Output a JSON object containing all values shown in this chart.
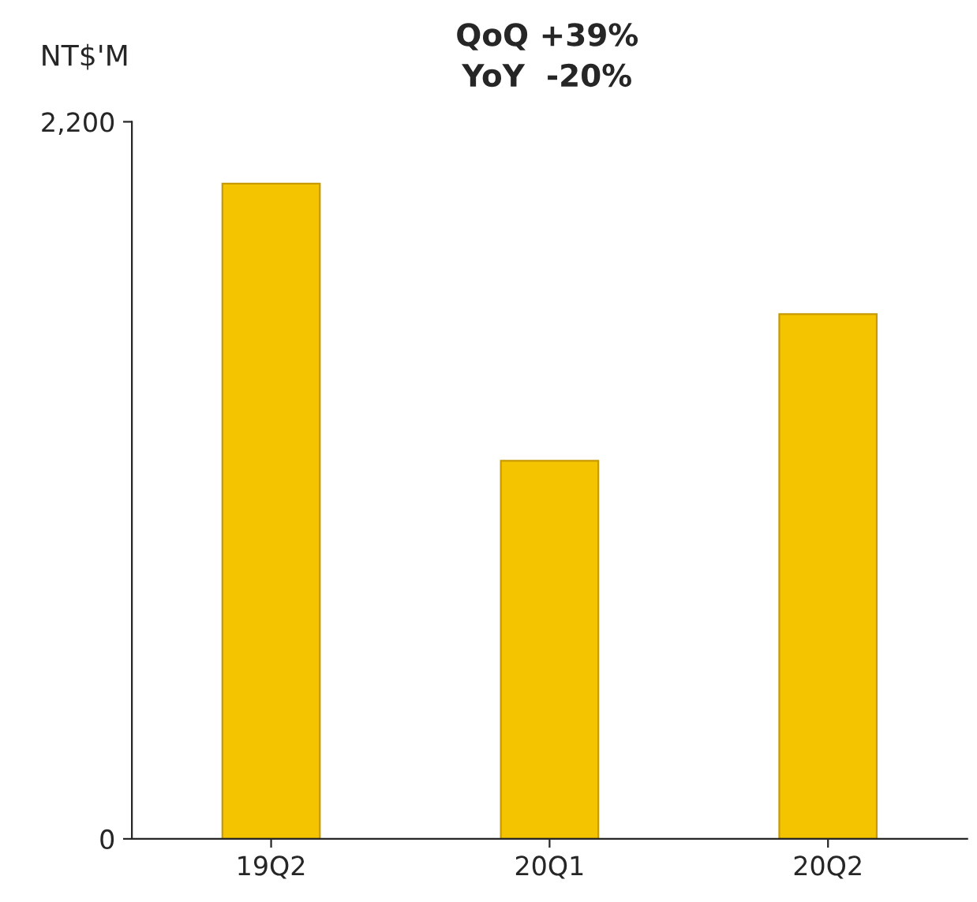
{
  "chart_data": {
    "type": "bar",
    "title": "QoQ +39%",
    "subtitle": "YoY  -20%",
    "ylabel": "NT$'M",
    "categories": [
      "19Q2",
      "20Q1",
      "20Q2"
    ],
    "values": [
      2010,
      1160,
      1610
    ],
    "color": "#f5c400",
    "ylim": [
      0,
      2200
    ],
    "yticks": [
      0,
      {
        "value": 2200,
        "label": "2,200"
      }
    ],
    "grid": false
  }
}
